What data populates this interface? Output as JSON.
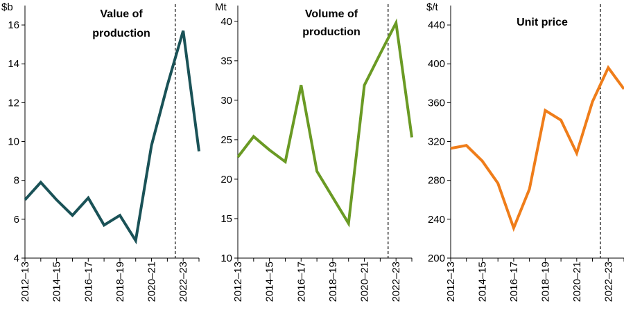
{
  "chart_data": [
    {
      "type": "line",
      "title_lines": [
        "Value of",
        "production"
      ],
      "ylabel": "$b",
      "ylim": [
        4,
        17
      ],
      "yticks": [
        "4",
        "6",
        "8",
        "10",
        "12",
        "14",
        "16"
      ],
      "x": [
        "2012–13",
        "2013–14",
        "2014–15",
        "2015–16",
        "2016–17",
        "2017–18",
        "2018–19",
        "2019–20",
        "2020–21",
        "2021–22",
        "2022–23",
        "2023–24"
      ],
      "xtick_labels": [
        "2012–13",
        "2014–15",
        "2016–17",
        "2018–19",
        "2020–21",
        "2022–23"
      ],
      "forecast_divider_after": "2021–22",
      "series": [
        {
          "color": "#1a5257",
          "values": [
            7.0,
            7.9,
            7.0,
            6.2,
            7.1,
            5.7,
            6.2,
            4.9,
            9.8,
            12.9,
            15.7,
            9.5
          ]
        }
      ]
    },
    {
      "type": "line",
      "title_lines": [
        "Volume of",
        "production"
      ],
      "ylabel": "Mt",
      "ylim": [
        10,
        42
      ],
      "yticks": [
        "10",
        "15",
        "20",
        "25",
        "30",
        "35",
        "40"
      ],
      "x": [
        "2012–13",
        "2013–14",
        "2014–15",
        "2015–16",
        "2016–17",
        "2017–18",
        "2018–19",
        "2019–20",
        "2020–21",
        "2021–22",
        "2022–23",
        "2023–24"
      ],
      "xtick_labels": [
        "2012–13",
        "2014–15",
        "2016–17",
        "2018–19",
        "2020–21",
        "2022–23"
      ],
      "forecast_divider_after": "2021–22",
      "series": [
        {
          "color": "#6a9a24",
          "values": [
            22.8,
            25.4,
            23.7,
            22.2,
            31.9,
            21.0,
            17.7,
            14.4,
            31.9,
            35.9,
            39.8,
            25.3
          ]
        }
      ]
    },
    {
      "type": "line",
      "title_lines": [
        "Unit price"
      ],
      "ylabel": "$/t",
      "ylim": [
        200,
        460
      ],
      "yticks": [
        "200",
        "240",
        "280",
        "320",
        "360",
        "400",
        "440"
      ],
      "x": [
        "2012–13",
        "2013–14",
        "2014–15",
        "2015–16",
        "2016–17",
        "2017–18",
        "2018–19",
        "2019–20",
        "2020–21",
        "2021–22",
        "2022–23",
        "2023–24"
      ],
      "xtick_labels": [
        "2012–13",
        "2014–15",
        "2016–17",
        "2018–19",
        "2020–21",
        "2022–23"
      ],
      "forecast_divider_after": "2021–22",
      "series": [
        {
          "color": "#ef7d1a",
          "values": [
            313,
            316,
            300,
            277,
            231,
            271,
            352,
            342,
            308,
            361,
            396,
            374
          ]
        }
      ]
    }
  ]
}
